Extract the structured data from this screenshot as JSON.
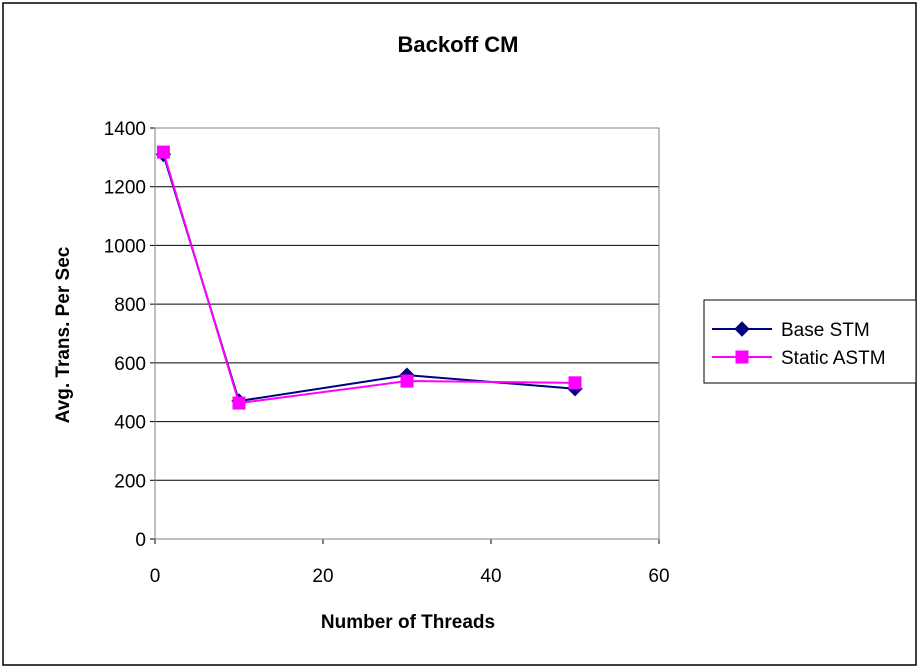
{
  "chart_data": {
    "type": "line",
    "title": "Backoff CM",
    "xlabel": "Number of Threads",
    "ylabel": "Avg. Trans. Per Sec",
    "xlim": [
      0,
      60
    ],
    "ylim": [
      0,
      1400
    ],
    "xticks": [
      "0",
      "20",
      "40",
      "60"
    ],
    "yticks": [
      "0",
      "200",
      "400",
      "600",
      "800",
      "1000",
      "1200",
      "1400"
    ],
    "grid": "horizontal",
    "legend_position": "right",
    "series": [
      {
        "name": "Base STM",
        "color": "#000080",
        "marker": "diamond",
        "x": [
          1,
          10,
          30,
          50
        ],
        "y": [
          1310,
          470,
          558,
          512
        ]
      },
      {
        "name": "Static ASTM",
        "color": "#FF00FF",
        "marker": "square",
        "x": [
          1,
          10,
          30,
          50
        ],
        "y": [
          1318,
          463,
          538,
          532
        ]
      }
    ]
  }
}
